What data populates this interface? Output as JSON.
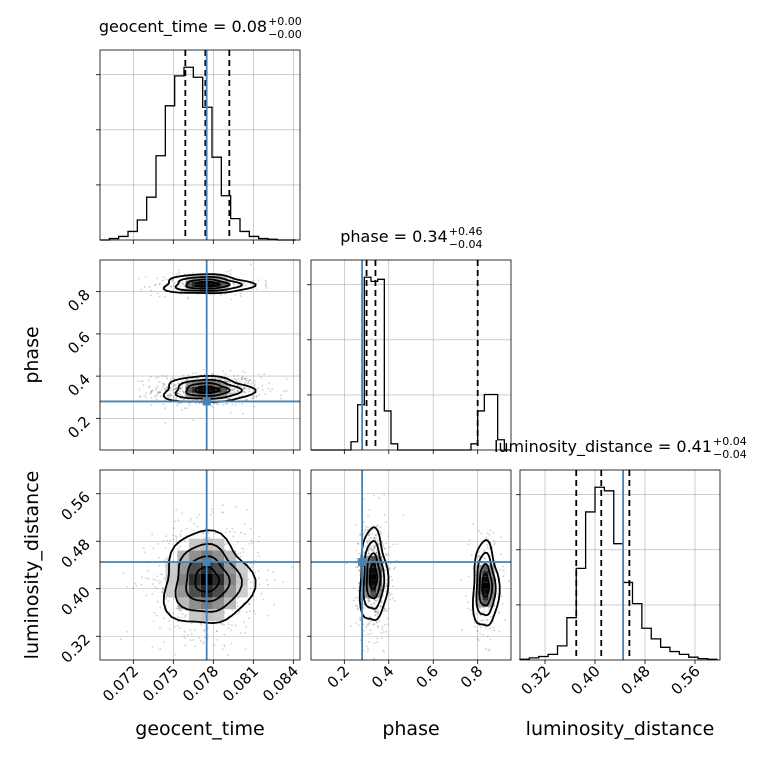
{
  "chart_data": {
    "type": "corner",
    "parameters": [
      "geocent_time",
      "phase",
      "luminosity_distance"
    ],
    "truths": {
      "geocent_time": 0.0775,
      "phase": 0.28,
      "luminosity_distance": 0.445
    },
    "panels": [
      {
        "id": "geocent_time-hist",
        "type": "histogram",
        "parameter": "geocent_time",
        "title": {
          "main": "geocent_time = 0.08",
          "sup": "+0.00",
          "sub": "−0.00"
        },
        "xlim": [
          0.0695,
          0.0845
        ],
        "quantiles": [
          0.0759,
          0.0774,
          0.0792
        ],
        "bin_edges": [
          0.0695,
          0.0702,
          0.0709,
          0.0716,
          0.0723,
          0.073,
          0.0737,
          0.0744,
          0.0751,
          0.0758,
          0.0765,
          0.0772,
          0.0779,
          0.0786,
          0.0793,
          0.08,
          0.0807,
          0.0814,
          0.0821,
          0.0828,
          0.0835,
          0.0842
        ],
        "counts": [
          0,
          2,
          5,
          12,
          28,
          60,
          118,
          188,
          230,
          242,
          228,
          186,
          116,
          62,
          30,
          12,
          5,
          2,
          1,
          0,
          0
        ]
      },
      {
        "id": "phase-hist",
        "type": "histogram",
        "parameter": "phase",
        "title": {
          "main": "phase = 0.34",
          "sup": "+0.46",
          "sub": "−0.04"
        },
        "xlim": [
          0.05,
          0.95
        ],
        "quantiles": [
          0.3,
          0.34,
          0.8
        ],
        "bin_edges": [
          0.05,
          0.08,
          0.11,
          0.14,
          0.17,
          0.2,
          0.23,
          0.26,
          0.29,
          0.32,
          0.35,
          0.38,
          0.41,
          0.44,
          0.47,
          0.5,
          0.53,
          0.56,
          0.59,
          0.62,
          0.65,
          0.68,
          0.71,
          0.74,
          0.77,
          0.8,
          0.83,
          0.86,
          0.89,
          0.92,
          0.95
        ],
        "counts": [
          0,
          0,
          0,
          0,
          0,
          0,
          20,
          110,
          420,
          410,
          415,
          95,
          15,
          0,
          0,
          0,
          0,
          0,
          0,
          0,
          0,
          0,
          0,
          0,
          15,
          95,
          135,
          135,
          25,
          0
        ]
      },
      {
        "id": "luminosity_distance-hist",
        "type": "histogram",
        "parameter": "luminosity_distance",
        "title": {
          "main": "luminosity_distance = 0.41",
          "sup": "+0.04",
          "sub": "−0.04"
        },
        "xlim": [
          0.28,
          0.6
        ],
        "quantiles": [
          0.37,
          0.41,
          0.455
        ],
        "bin_edges": [
          0.28,
          0.295,
          0.31,
          0.325,
          0.34,
          0.355,
          0.37,
          0.385,
          0.4,
          0.415,
          0.43,
          0.445,
          0.46,
          0.475,
          0.49,
          0.505,
          0.52,
          0.535,
          0.55,
          0.565,
          0.58,
          0.595
        ],
        "counts": [
          1,
          3,
          5,
          8,
          20,
          60,
          130,
          210,
          245,
          240,
          165,
          110,
          80,
          45,
          30,
          18,
          12,
          8,
          4,
          2,
          1
        ]
      },
      {
        "id": "phase-vs-geocent_time",
        "type": "scatter-contour",
        "x": "geocent_time",
        "y": "phase",
        "xlim": [
          0.0695,
          0.0845
        ],
        "ylim": [
          0.05,
          0.95
        ],
        "clusters": [
          {
            "cx": 0.0775,
            "cy": 0.335,
            "sx": 0.0016,
            "sy": 0.03,
            "n": 700
          },
          {
            "cx": 0.0775,
            "cy": 0.835,
            "sx": 0.0016,
            "sy": 0.022,
            "n": 260
          }
        ]
      },
      {
        "id": "luminosity_distance-vs-geocent_time",
        "type": "scatter-contour",
        "x": "geocent_time",
        "y": "luminosity_distance",
        "xlim": [
          0.0695,
          0.0845
        ],
        "ylim": [
          0.28,
          0.6
        ],
        "clusters": [
          {
            "cx": 0.0775,
            "cy": 0.415,
            "sx": 0.0016,
            "sy": 0.038,
            "n": 800
          }
        ]
      },
      {
        "id": "luminosity_distance-vs-phase",
        "type": "scatter-contour",
        "x": "phase",
        "y": "luminosity_distance",
        "xlim": [
          0.05,
          0.95
        ],
        "ylim": [
          0.28,
          0.6
        ],
        "clusters": [
          {
            "cx": 0.33,
            "cy": 0.42,
            "sx": 0.03,
            "sy": 0.038,
            "n": 620
          },
          {
            "cx": 0.835,
            "cy": 0.405,
            "sx": 0.028,
            "sy": 0.035,
            "n": 240
          }
        ]
      }
    ],
    "ticks": {
      "geocent_time": {
        "values": [
          0.072,
          0.075,
          0.078,
          0.081,
          0.084
        ],
        "labels": [
          "0.072",
          "0.075",
          "0.078",
          "0.081",
          "0.084"
        ]
      },
      "phase": {
        "values": [
          0.2,
          0.4,
          0.6,
          0.8
        ],
        "labels": [
          "0.2",
          "0.4",
          "0.6",
          "0.8"
        ]
      },
      "luminosity_distance": {
        "values": [
          0.32,
          0.4,
          0.48,
          0.56
        ],
        "labels": [
          "0.32",
          "0.40",
          "0.48",
          "0.56"
        ]
      }
    },
    "axis_labels": {
      "geocent_time": "geocent_time",
      "phase": "phase",
      "luminosity_distance": "luminosity_distance"
    },
    "grid": true,
    "colors": {
      "truth": "#4682b4",
      "hist": "#000000",
      "points": "#555555"
    }
  }
}
